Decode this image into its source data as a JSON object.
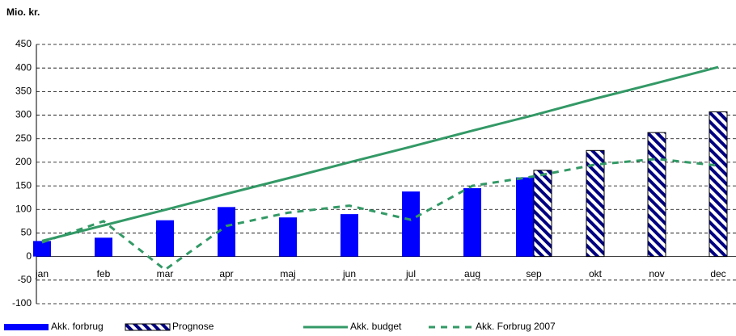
{
  "chart_data": {
    "type": "bar",
    "title": "Mio. kr.",
    "categories": [
      "jan",
      "feb",
      "mar",
      "apr",
      "maj",
      "jun",
      "jul",
      "aug",
      "sep",
      "okt",
      "nov",
      "dec"
    ],
    "series": [
      {
        "name": "Akk. forbrug",
        "type": "bar",
        "color": "#0000ff",
        "values": [
          33,
          40,
          77,
          105,
          83,
          90,
          138,
          145,
          168,
          null,
          null,
          null
        ]
      },
      {
        "name": "Prognose",
        "type": "hatched-bar",
        "color": "#000080",
        "values": [
          null,
          null,
          null,
          null,
          null,
          null,
          null,
          null,
          183,
          225,
          263,
          307
        ]
      },
      {
        "name": "Akk. budget",
        "type": "line",
        "color": "#339966",
        "values": [
          33,
          66,
          99,
          133,
          166,
          200,
          233,
          267,
          300,
          335,
          368,
          402
        ]
      },
      {
        "name": "Akk. Forbrug 2007",
        "type": "dashed-line",
        "color": "#339966",
        "values": [
          30,
          75,
          -28,
          65,
          93,
          108,
          78,
          150,
          170,
          195,
          207,
          193
        ]
      }
    ],
    "ylim": [
      -100,
      450
    ],
    "yticks": [
      -100,
      -50,
      0,
      50,
      100,
      150,
      200,
      250,
      300,
      350,
      400,
      450
    ],
    "grid": true
  }
}
